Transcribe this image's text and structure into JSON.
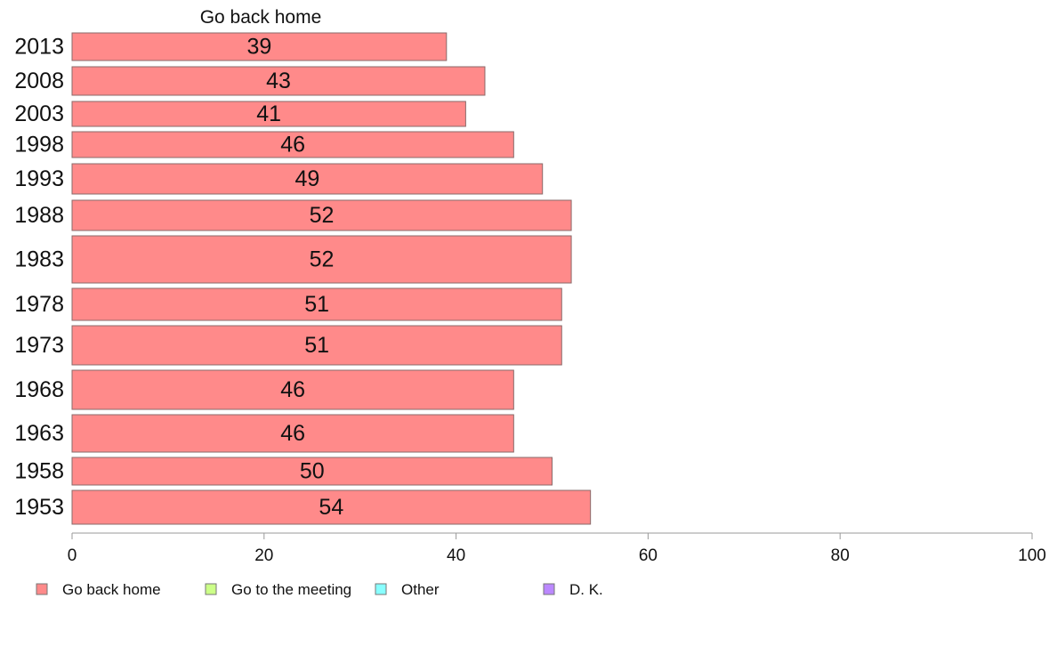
{
  "chart_data": {
    "type": "bar",
    "orientation": "horizontal",
    "series_title": "Go back home",
    "categories": [
      "2013",
      "2008",
      "2003",
      "1998",
      "1993",
      "1988",
      "1983",
      "1978",
      "1973",
      "1968",
      "1963",
      "1958",
      "1953"
    ],
    "series": [
      {
        "name": "Go back home",
        "values": [
          39,
          43,
          41,
          46,
          49,
          52,
          52,
          51,
          51,
          46,
          46,
          50,
          54
        ]
      }
    ],
    "value_display": [
      "39",
      "43",
      "41",
      "46",
      "49",
      "52",
      "52",
      "51",
      "51",
      "46",
      "46",
      "50",
      "54"
    ],
    "xlim": [
      0,
      100
    ],
    "xticks": [
      0,
      20,
      40,
      60,
      80,
      100
    ],
    "xtick_labels": [
      "0",
      "20",
      "40",
      "60",
      "80",
      "100"
    ],
    "grid": false,
    "legend_position": "bottom-left",
    "legend": [
      {
        "label": "Go back home",
        "color": "#ff8a8a"
      },
      {
        "label": "Go to the meeting",
        "color": "#ccff88"
      },
      {
        "label": "Other",
        "color": "#88ffff"
      },
      {
        "label": "D. K.",
        "color": "#bb88ff"
      }
    ],
    "colors": {
      "bar_fill": "#ff8a8a",
      "bar_stroke": "#8a6a6a",
      "axis": "#999999"
    }
  }
}
